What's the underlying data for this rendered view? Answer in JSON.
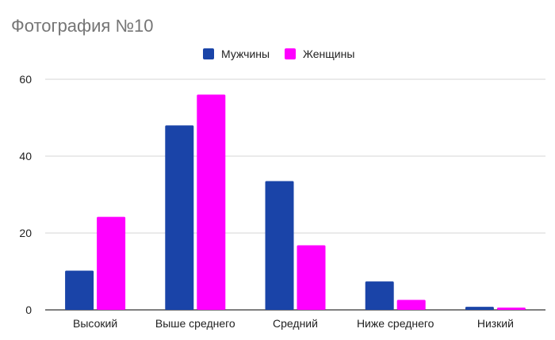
{
  "chart_data": {
    "type": "bar",
    "title": "Фотография №10",
    "xlabel": "",
    "ylabel": "",
    "categories": [
      "Высокий",
      "Выше среднего",
      "Средний",
      "Ниже среднего",
      "Низкий"
    ],
    "series": [
      {
        "name": "Мужчины",
        "color": "#1a44a8",
        "values": [
          10.2,
          48.0,
          33.5,
          7.4,
          0.8
        ]
      },
      {
        "name": "Женщины",
        "color": "#ff00ff",
        "values": [
          24.2,
          56.0,
          16.8,
          2.6,
          0.6
        ]
      }
    ],
    "ylim": [
      0,
      60
    ],
    "yticks": [
      "0",
      "20",
      "40",
      "60"
    ],
    "grid": true,
    "legend_position": "top-center"
  }
}
